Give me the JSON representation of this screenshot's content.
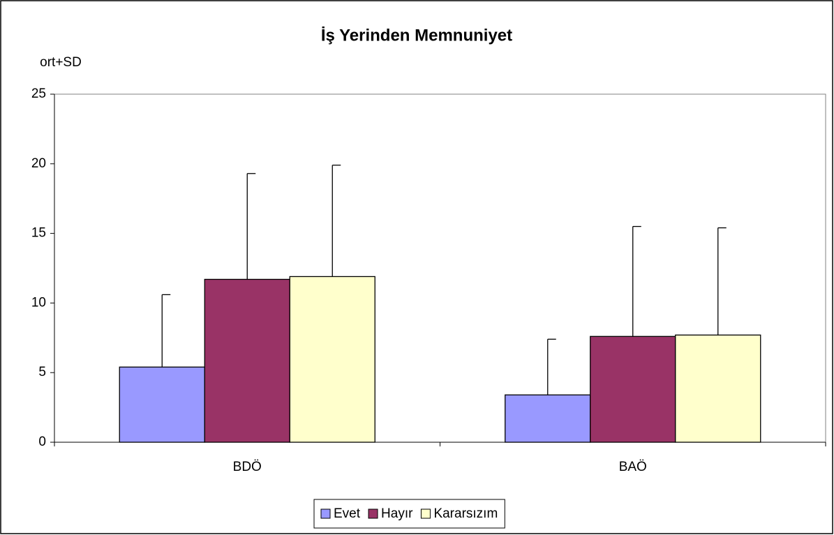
{
  "chart_data": {
    "type": "bar",
    "title": "İş Yerinden Memnuniyet",
    "ylabel": "ort+SD",
    "categories": [
      "BDÖ",
      "BAÖ"
    ],
    "series": [
      {
        "name": "Evet",
        "color": "#9999ff",
        "values": [
          5.4,
          3.4
        ],
        "errors": [
          5.2,
          4.0
        ]
      },
      {
        "name": "Hayır",
        "color": "#993366",
        "values": [
          11.7,
          7.6
        ],
        "errors": [
          7.6,
          7.9
        ]
      },
      {
        "name": "Kararsızım",
        "color": "#ffffcc",
        "values": [
          11.9,
          7.7
        ],
        "errors": [
          8.0,
          7.7
        ]
      }
    ],
    "ylim": [
      0,
      25
    ],
    "yticks": [
      0,
      5,
      10,
      15,
      20,
      25
    ],
    "grid": false,
    "legend": "bottom"
  }
}
